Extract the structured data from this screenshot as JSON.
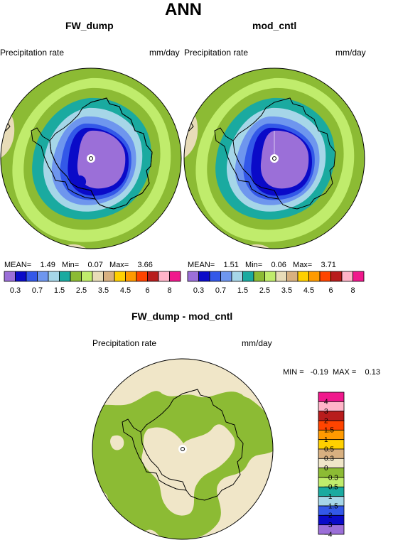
{
  "main_title": "ANN",
  "panels": [
    {
      "title": "FW_dump",
      "left_label": "Precipitation rate",
      "right_label": "mm/day",
      "stats": {
        "mean_label": "MEAN=",
        "mean": "1.49",
        "min_label": "Min=",
        "min": "0.07",
        "max_label": "Max=",
        "max": "3.66"
      }
    },
    {
      "title": "mod_cntl",
      "left_label": "Precipitation rate",
      "right_label": "mm/day",
      "stats": {
        "mean_label": "MEAN=",
        "mean": "1.51",
        "min_label": "Min=",
        "min": "0.06",
        "max_label": "Max=",
        "max": "3.71"
      }
    }
  ],
  "abs_colorbar": {
    "labels": [
      "0.3",
      "0.7",
      "1.5",
      "2.5",
      "3.5",
      "4.5",
      "6",
      "8"
    ],
    "colors": [
      "#9b6fd8",
      "#0a0ac8",
      "#3358e8",
      "#6e96ee",
      "#a6d6e8",
      "#1aaaa0",
      "#8cbb34",
      "#c0ec6c",
      "#e8dcb8",
      "#d8b080",
      "#ffd000",
      "#ff9a00",
      "#ff4400",
      "#b81c1c",
      "#ffb4c8",
      "#f0188c"
    ]
  },
  "diff_panel": {
    "title": "FW_dump - mod_cntl",
    "left_label": "Precipitation rate",
    "right_label": "mm/day",
    "stats_text": "MIN =   -0.19  MAX =    0.13",
    "colorbar": {
      "labels": [
        "4",
        "3",
        "2",
        "1.5",
        "1",
        "0.5",
        "0.3",
        "0",
        "−0.3",
        "−0.5",
        "−1",
        "−1.5",
        "−2",
        "−3",
        "−4"
      ],
      "colors": [
        "#f0188c",
        "#ffb4c8",
        "#b81c1c",
        "#ff4400",
        "#ff9a00",
        "#ffd000",
        "#d8b080",
        "#f0e6c8",
        "#8cbb34",
        "#c0ec6c",
        "#1aaaa0",
        "#a6d6e8",
        "#3358e8",
        "#0a0ac8",
        "#9b6fd8"
      ]
    }
  },
  "colors": {
    "land_boundary": "#000000",
    "pole_marker": "#ffffff"
  }
}
